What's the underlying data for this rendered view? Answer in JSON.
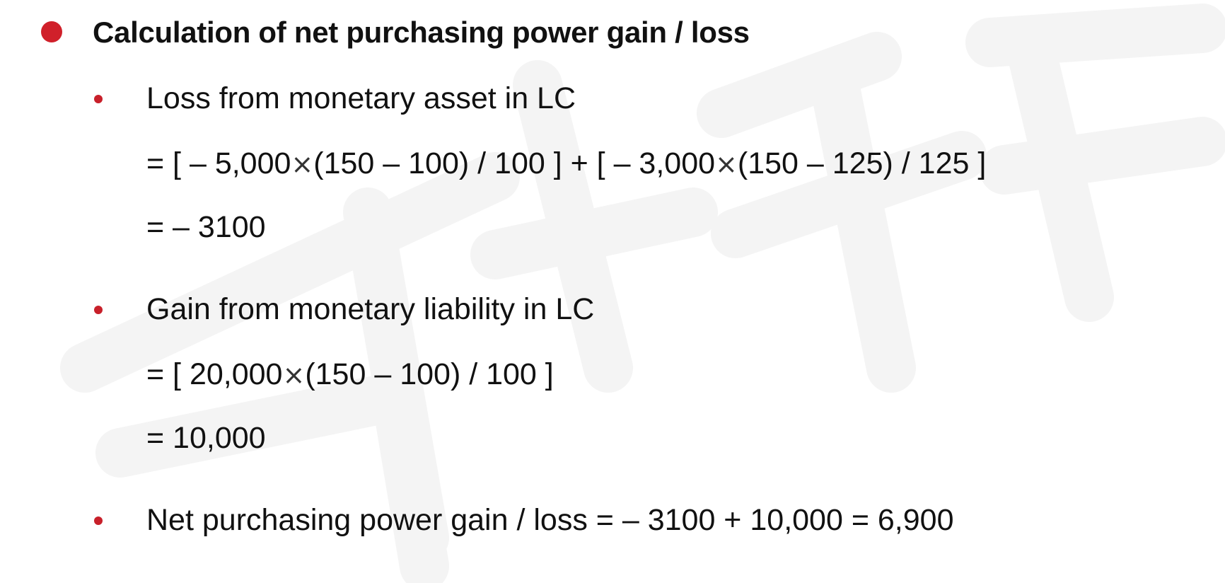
{
  "heading": "Calculation of net purchasing power gain / loss",
  "items": [
    {
      "label": "Loss from monetary asset in LC",
      "formula_parts": [
        "= [ – 5,000",
        "(150 – 100) / 100 ] + [ – 3,000",
        "(150 – 125) / 125 ]"
      ],
      "result": "= – 3100"
    },
    {
      "label": "Gain from monetary liability in LC",
      "formula_parts": [
        "= [ 20,000",
        "(150 – 100) / 100 ]"
      ],
      "result": "= 10,000"
    },
    {
      "label": "Net purchasing power gain / loss = – 3100 + 10,000 = 6,900"
    }
  ],
  "symbols": {
    "times": "×"
  },
  "colors": {
    "bullet": "#d0202a",
    "text": "#111111"
  }
}
